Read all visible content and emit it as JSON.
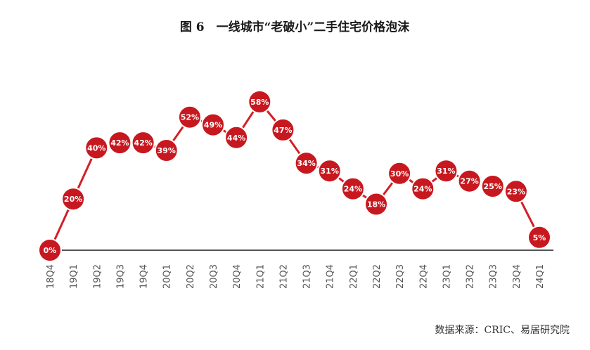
{
  "title": "图 6　一线城市“老破小”二手住宅价格泡沫",
  "source": "数据来源：CRIC、易居研究院",
  "colors": {
    "line": "#d41f26",
    "marker_fill": "#c8181f",
    "marker_stroke": "#ffffff",
    "axis": "#555555",
    "label_text": "#ffffff"
  },
  "chart_data": {
    "type": "line",
    "title": "图 6　一线城市“老破小”二手住宅价格泡沫",
    "xlabel": "",
    "ylabel": "",
    "categories": [
      "18Q4",
      "19Q1",
      "19Q2",
      "19Q3",
      "19Q4",
      "20Q1",
      "20Q2",
      "20Q3",
      "20Q4",
      "21Q1",
      "21Q2",
      "21Q3",
      "21Q4",
      "22Q1",
      "22Q2",
      "22Q3",
      "22Q4",
      "23Q1",
      "23Q2",
      "23Q3",
      "23Q4",
      "24Q1"
    ],
    "values": [
      0,
      20,
      40,
      42,
      42,
      39,
      52,
      49,
      44,
      58,
      47,
      34,
      31,
      24,
      18,
      30,
      24,
      31,
      27,
      25,
      23,
      5
    ],
    "labels": [
      "0%",
      "20%",
      "40%",
      "42%",
      "42%",
      "39%",
      "52%",
      "49%",
      "44%",
      "58%",
      "47%",
      "34%",
      "31%",
      "24%",
      "18%",
      "30%",
      "24%",
      "31%",
      "27%",
      "25%",
      "23%",
      "5%"
    ],
    "unit": "%",
    "grid": false,
    "legend": "none"
  }
}
